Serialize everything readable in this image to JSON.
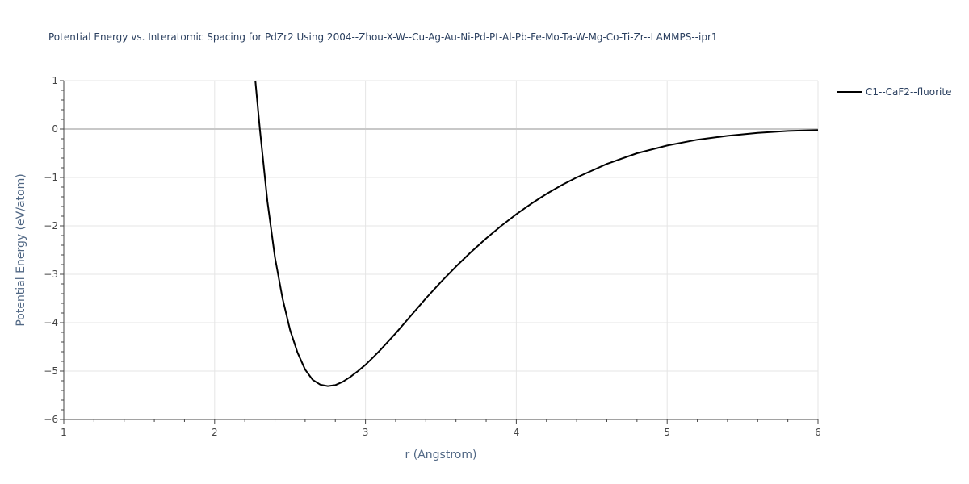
{
  "chart_data": {
    "type": "line",
    "title": "Potential Energy vs. Interatomic Spacing for PdZr2 Using 2004--Zhou-X-W--Cu-Ag-Au-Ni-Pd-Pt-Al-Pb-Fe-Mo-Ta-W-Mg-Co-Ti-Zr--LAMMPS--ipr1",
    "xlabel": "r (Angstrom)",
    "ylabel": "Potential Energy (eV/atom)",
    "xlim": [
      1,
      6
    ],
    "ylim": [
      -6,
      1
    ],
    "xticks": [
      1,
      2,
      3,
      4,
      5,
      6
    ],
    "yticks": [
      1,
      0,
      -1,
      -2,
      -3,
      -4,
      -5,
      -6
    ],
    "ytick_labels": [
      "1",
      "0",
      "−1",
      "−2",
      "−3",
      "−4",
      "−5",
      "−6"
    ],
    "grid": true,
    "zero_line": true,
    "legend_position": "top-right",
    "series": [
      {
        "name": "C1--CaF2--fluorite",
        "color": "#000000",
        "x": [
          2.27,
          2.3,
          2.35,
          2.4,
          2.45,
          2.5,
          2.55,
          2.6,
          2.65,
          2.7,
          2.75,
          2.8,
          2.85,
          2.9,
          2.95,
          3.0,
          3.05,
          3.1,
          3.2,
          3.3,
          3.4,
          3.5,
          3.6,
          3.7,
          3.8,
          3.9,
          4.0,
          4.1,
          4.2,
          4.3,
          4.4,
          4.5,
          4.6,
          4.8,
          5.0,
          5.2,
          5.4,
          5.6,
          5.8,
          6.0
        ],
        "y": [
          1.0,
          0.0,
          -1.5,
          -2.65,
          -3.5,
          -4.15,
          -4.62,
          -4.97,
          -5.18,
          -5.28,
          -5.31,
          -5.29,
          -5.22,
          -5.12,
          -5.0,
          -4.87,
          -4.72,
          -4.56,
          -4.22,
          -3.86,
          -3.5,
          -3.16,
          -2.84,
          -2.54,
          -2.26,
          -2.0,
          -1.76,
          -1.54,
          -1.34,
          -1.16,
          -1.0,
          -0.86,
          -0.72,
          -0.5,
          -0.34,
          -0.22,
          -0.14,
          -0.08,
          -0.04,
          -0.02
        ]
      }
    ]
  }
}
